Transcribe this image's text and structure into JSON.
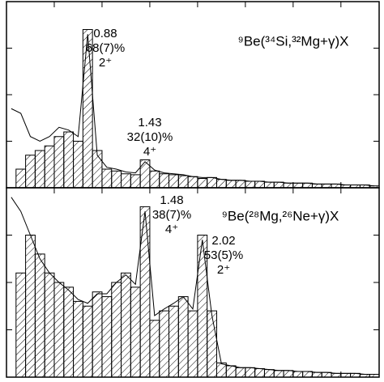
{
  "chart_data": [
    {
      "type": "histogram",
      "bins": [
        0,
        0.1,
        0.2,
        0.3,
        0.4,
        0.5,
        0.6,
        0.7,
        0.8,
        0.9,
        1.0,
        1.1,
        1.2,
        1.3,
        1.4,
        1.5,
        1.6,
        1.7,
        1.8,
        1.9,
        2.0,
        2.1,
        2.2,
        2.3,
        2.4,
        2.5,
        2.6,
        2.7,
        2.8,
        2.9,
        3.0,
        3.1,
        3.2,
        3.3,
        3.4,
        3.5,
        3.6,
        3.7,
        3.8,
        3.9
      ],
      "series": [
        {
          "color": "#000000",
          "values": [
            0,
            20,
            35,
            40,
            45,
            55,
            60,
            50,
            170,
            40,
            20,
            18,
            15,
            14,
            30,
            18,
            15,
            14,
            13,
            12,
            10,
            11,
            9,
            8,
            8,
            7,
            7,
            6,
            6,
            5,
            5,
            5,
            4,
            4,
            4,
            3,
            3,
            3,
            2
          ]
        },
        {
          "color": "#000000",
          "values": [
            85,
            80,
            55,
            50,
            55,
            65,
            62,
            55,
            165,
            35,
            22,
            20,
            17,
            16,
            28,
            19,
            16,
            15,
            14,
            12,
            11,
            11,
            9,
            8,
            8,
            7,
            7,
            6,
            6,
            5,
            5,
            5,
            4,
            4,
            4,
            3,
            3,
            3,
            2
          ]
        }
      ],
      "xlim": [
        0,
        3.9
      ],
      "ylim": [
        0,
        200
      ],
      "xticks": [
        0.5,
        1,
        1.5,
        2,
        2.5,
        3,
        3.5
      ],
      "yticks": [
        50,
        100,
        150
      ],
      "label": "⁹Be(³⁴Si,³²Mg+γ)X",
      "annotations": [
        {
          "lines": [
            "0.88",
            "68(7)%",
            "2⁺"
          ]
        },
        {
          "lines": [
            "1.43",
            "32(10)%",
            "4⁺"
          ]
        }
      ]
    },
    {
      "type": "histogram",
      "bins": [
        0,
        0.1,
        0.2,
        0.3,
        0.4,
        0.5,
        0.6,
        0.7,
        0.8,
        0.9,
        1.0,
        1.1,
        1.2,
        1.3,
        1.4,
        1.5,
        1.6,
        1.7,
        1.8,
        1.9,
        2.0,
        2.1,
        2.2,
        2.3,
        2.4,
        2.5,
        2.6,
        2.7,
        2.8,
        2.9,
        3.0,
        3.1,
        3.2,
        3.3,
        3.4,
        3.5,
        3.6,
        3.7,
        3.8,
        3.9
      ],
      "series": [
        {
          "color": "#000000",
          "values": [
            0,
            110,
            150,
            130,
            110,
            100,
            95,
            80,
            75,
            90,
            85,
            100,
            110,
            95,
            180,
            60,
            70,
            75,
            85,
            70,
            150,
            70,
            15,
            12,
            10,
            10,
            9,
            8,
            7,
            7,
            6,
            6,
            5,
            5,
            4,
            4,
            4,
            3,
            3
          ]
        },
        {
          "color": "#000000",
          "values": [
            190,
            175,
            150,
            125,
            110,
            100,
            92,
            82,
            78,
            88,
            88,
            100,
            108,
            98,
            175,
            65,
            72,
            78,
            85,
            72,
            145,
            65,
            14,
            12,
            10,
            10,
            9,
            8,
            7,
            7,
            6,
            6,
            5,
            5,
            4,
            4,
            4,
            3,
            3
          ]
        }
      ],
      "xlim": [
        0,
        3.9
      ],
      "ylim": [
        0,
        200
      ],
      "xticks": [
        0.5,
        1,
        1.5,
        2,
        2.5,
        3,
        3.5
      ],
      "yticks": [
        50,
        100,
        150
      ],
      "label": "⁹Be(²⁸Mg,²⁶Ne+γ)X",
      "annotations": [
        {
          "lines": [
            "1.48",
            "38(7)%",
            "4⁺"
          ]
        },
        {
          "lines": [
            "2.02",
            "53(5)%",
            "2⁺"
          ]
        }
      ]
    }
  ]
}
